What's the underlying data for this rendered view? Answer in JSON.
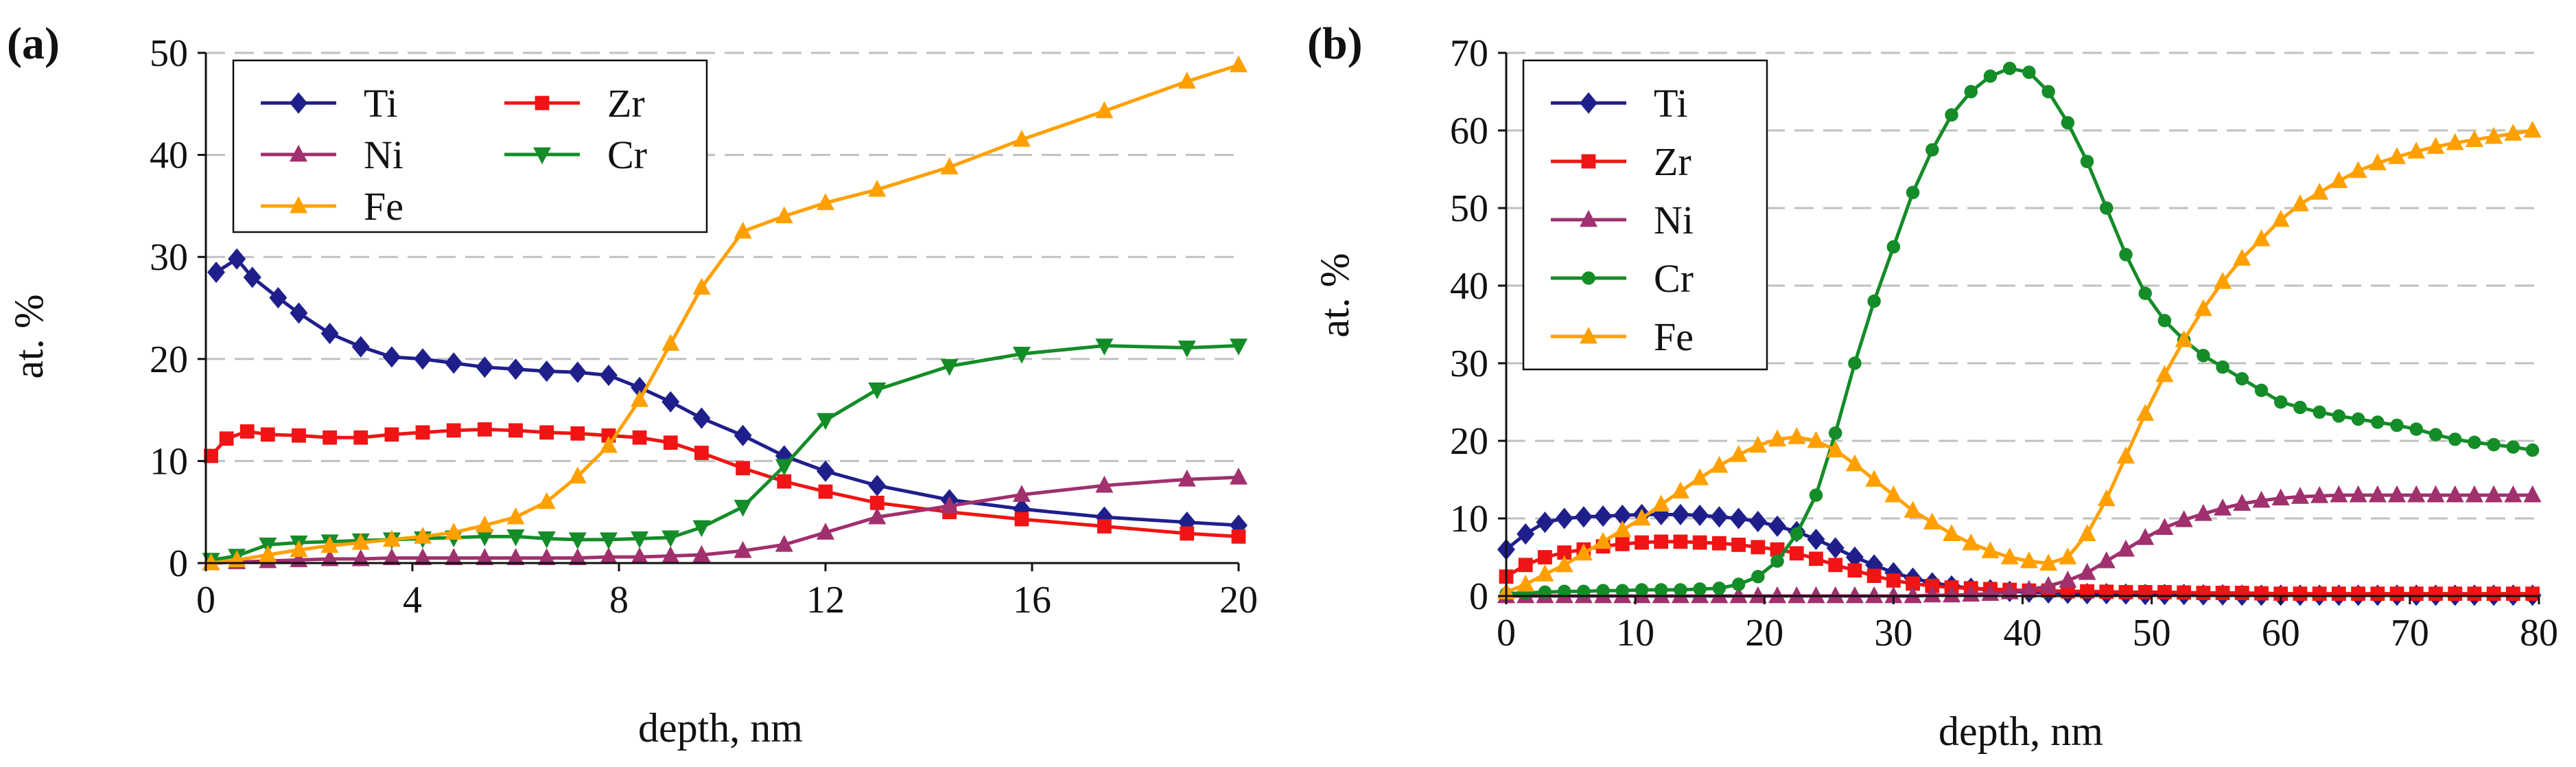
{
  "colors": {
    "Ti": "#1f1f8c",
    "Zr": "#f01414",
    "Ni": "#a0306e",
    "Cr": "#148c28",
    "Fe": "#ffa000",
    "grid": "#c0c0c0"
  },
  "chart_data": [
    {
      "type": "line",
      "panel_label": "(a)",
      "xlabel": "depth, nm",
      "ylabel": "at. %",
      "xlim": [
        0,
        20
      ],
      "ylim": [
        0,
        50
      ],
      "xticks": [
        0,
        4,
        8,
        12,
        16,
        20
      ],
      "yticks": [
        0,
        10,
        20,
        30,
        40,
        50
      ],
      "grid": "horizontal dashed",
      "legend": {
        "placement": "top-left",
        "columns": 2,
        "order": [
          "Ti",
          "Zr",
          "Ni",
          "Cr",
          "Fe"
        ]
      },
      "series": [
        {
          "name": "Ti",
          "marker": "diamond",
          "x": [
            0.2,
            0.6,
            0.9,
            1.4,
            1.8,
            2.4,
            3.0,
            3.6,
            4.2,
            4.8,
            5.4,
            6.0,
            6.6,
            7.2,
            7.8,
            8.4,
            9.0,
            9.6,
            10.4,
            11.2,
            12.0,
            13.0,
            14.4,
            15.8,
            17.4,
            19.0,
            20.0
          ],
          "values": [
            28.5,
            29.8,
            28.0,
            26.0,
            24.5,
            22.5,
            21.2,
            20.2,
            20.0,
            19.6,
            19.2,
            19.0,
            18.8,
            18.7,
            18.4,
            17.2,
            15.8,
            14.2,
            12.5,
            10.5,
            9.0,
            7.6,
            6.2,
            5.3,
            4.5,
            4.0,
            3.7
          ]
        },
        {
          "name": "Zr",
          "marker": "square",
          "x": [
            0.1,
            0.4,
            0.8,
            1.2,
            1.8,
            2.4,
            3.0,
            3.6,
            4.2,
            4.8,
            5.4,
            6.0,
            6.6,
            7.2,
            7.8,
            8.4,
            9.0,
            9.6,
            10.4,
            11.2,
            12.0,
            13.0,
            14.4,
            15.8,
            17.4,
            19.0,
            20.0
          ],
          "values": [
            10.5,
            12.2,
            12.9,
            12.6,
            12.5,
            12.3,
            12.3,
            12.6,
            12.8,
            13.0,
            13.1,
            13.0,
            12.8,
            12.7,
            12.5,
            12.3,
            11.8,
            10.8,
            9.3,
            8.0,
            7.0,
            5.9,
            5.0,
            4.3,
            3.6,
            2.9,
            2.6
          ]
        },
        {
          "name": "Ni",
          "marker": "triangle",
          "x": [
            0.1,
            0.6,
            1.2,
            1.8,
            2.4,
            3.0,
            3.6,
            4.2,
            4.8,
            5.4,
            6.0,
            6.6,
            7.2,
            7.8,
            8.4,
            9.0,
            9.6,
            10.4,
            11.2,
            12.0,
            13.0,
            14.4,
            15.8,
            17.4,
            19.0,
            20.0
          ],
          "values": [
            0.0,
            0.1,
            0.2,
            0.3,
            0.4,
            0.4,
            0.5,
            0.5,
            0.5,
            0.5,
            0.5,
            0.5,
            0.5,
            0.6,
            0.6,
            0.7,
            0.8,
            1.2,
            1.8,
            3.0,
            4.5,
            5.6,
            6.7,
            7.6,
            8.2,
            8.4
          ]
        },
        {
          "name": "Cr",
          "marker": "triangle-down",
          "x": [
            0.1,
            0.6,
            1.2,
            1.8,
            2.4,
            3.0,
            3.6,
            4.2,
            4.8,
            5.4,
            6.0,
            6.6,
            7.2,
            7.8,
            8.4,
            9.0,
            9.6,
            10.4,
            11.2,
            12.0,
            13.0,
            14.4,
            15.8,
            17.4,
            19.0,
            20.0
          ],
          "values": [
            0.3,
            0.7,
            1.8,
            2.0,
            2.1,
            2.2,
            2.3,
            2.4,
            2.5,
            2.6,
            2.6,
            2.4,
            2.3,
            2.3,
            2.4,
            2.5,
            3.5,
            5.5,
            9.5,
            14.0,
            17.0,
            19.3,
            20.5,
            21.3,
            21.1,
            21.3
          ]
        },
        {
          "name": "Fe",
          "marker": "triangle",
          "x": [
            0.1,
            0.6,
            1.2,
            1.8,
            2.4,
            3.0,
            3.6,
            4.2,
            4.8,
            5.4,
            6.0,
            6.6,
            7.2,
            7.8,
            8.4,
            9.0,
            9.6,
            10.4,
            11.2,
            12.0,
            13.0,
            14.4,
            15.8,
            17.4,
            19.0,
            20.0
          ],
          "values": [
            0.0,
            0.3,
            0.8,
            1.3,
            1.7,
            2.0,
            2.3,
            2.6,
            3.0,
            3.7,
            4.5,
            6.0,
            8.5,
            11.5,
            16.0,
            21.5,
            27.0,
            32.5,
            34.0,
            35.3,
            36.6,
            38.8,
            41.5,
            44.3,
            47.2,
            48.8
          ]
        }
      ]
    },
    {
      "type": "line",
      "panel_label": "(b)",
      "xlabel": "depth, nm",
      "ylabel": "at. %",
      "xlim": [
        0,
        80
      ],
      "ylim": [
        0,
        70
      ],
      "xticks": [
        0,
        10,
        20,
        30,
        40,
        50,
        60,
        70,
        80
      ],
      "yticks": [
        0,
        10,
        20,
        30,
        40,
        50,
        60,
        70
      ],
      "grid": "horizontal dashed",
      "legend": {
        "placement": "top-left",
        "columns": 1,
        "order": [
          "Ti",
          "Zr",
          "Ni",
          "Cr",
          "Fe"
        ]
      },
      "series": [
        {
          "name": "Ti",
          "marker": "diamond",
          "x": [
            0,
            1.5,
            3,
            4.5,
            6,
            7.5,
            9,
            10.5,
            12,
            13.5,
            15,
            16.5,
            18,
            19.5,
            21,
            22.5,
            24,
            25.5,
            27,
            28.5,
            30,
            31.5,
            33,
            34.5,
            36,
            37.5,
            39,
            40.5,
            42,
            43.5,
            45,
            46.5,
            48,
            49.5,
            51,
            52.5,
            54,
            55.5,
            57,
            58.5,
            60,
            61.5,
            63,
            64.5,
            66,
            67.5,
            69,
            70.5,
            72,
            73.5,
            75,
            76.5,
            78,
            79.5
          ],
          "values": [
            6.0,
            8.0,
            9.5,
            10.0,
            10.2,
            10.3,
            10.4,
            10.5,
            10.5,
            10.5,
            10.4,
            10.2,
            10.0,
            9.6,
            9.0,
            8.3,
            7.3,
            6.2,
            5.0,
            4.0,
            3.0,
            2.3,
            1.7,
            1.3,
            1.0,
            0.8,
            0.6,
            0.5,
            0.4,
            0.35,
            0.3,
            0.3,
            0.25,
            0.2,
            0.2,
            0.2,
            0.15,
            0.15,
            0.1,
            0.1,
            0.1,
            0.1,
            0.1,
            0.1,
            0.1,
            0.1,
            0.1,
            0.1,
            0.1,
            0.1,
            0.1,
            0.1,
            0.1,
            0.1
          ]
        },
        {
          "name": "Zr",
          "marker": "square",
          "x": [
            0,
            1.5,
            3,
            4.5,
            6,
            7.5,
            9,
            10.5,
            12,
            13.5,
            15,
            16.5,
            18,
            19.5,
            21,
            22.5,
            24,
            25.5,
            27,
            28.5,
            30,
            31.5,
            33,
            34.5,
            36,
            37.5,
            39,
            40.5,
            42,
            43.5,
            45,
            46.5,
            48,
            49.5,
            51,
            52.5,
            54,
            55.5,
            57,
            58.5,
            60,
            61.5,
            63,
            64.5,
            66,
            67.5,
            69,
            70.5,
            72,
            73.5,
            75,
            76.5,
            78,
            79.5
          ],
          "values": [
            2.5,
            4.0,
            5.0,
            5.6,
            6.0,
            6.4,
            6.7,
            6.9,
            7.0,
            7.0,
            6.9,
            6.8,
            6.6,
            6.3,
            6.0,
            5.5,
            4.8,
            4.0,
            3.3,
            2.6,
            2.0,
            1.6,
            1.3,
            1.1,
            1.0,
            0.9,
            0.8,
            0.7,
            0.7,
            0.6,
            0.6,
            0.55,
            0.5,
            0.5,
            0.5,
            0.45,
            0.4,
            0.4,
            0.4,
            0.35,
            0.3,
            0.3,
            0.3,
            0.3,
            0.3,
            0.3,
            0.3,
            0.3,
            0.3,
            0.3,
            0.3,
            0.3,
            0.3,
            0.3
          ]
        },
        {
          "name": "Ni",
          "marker": "triangle",
          "x": [
            0,
            1.5,
            3,
            4.5,
            6,
            7.5,
            9,
            10.5,
            12,
            13.5,
            15,
            16.5,
            18,
            19.5,
            21,
            22.5,
            24,
            25.5,
            27,
            28.5,
            30,
            31.5,
            33,
            34.5,
            36,
            37.5,
            39,
            40.5,
            42,
            43.5,
            45,
            46.5,
            48,
            49.5,
            51,
            52.5,
            54,
            55.5,
            57,
            58.5,
            60,
            61.5,
            63,
            64.5,
            66,
            67.5,
            69,
            70.5,
            72,
            73.5,
            75,
            76.5,
            78,
            79.5
          ],
          "values": [
            0.0,
            0.0,
            0.0,
            0.0,
            0.0,
            0.0,
            0.0,
            0.0,
            0.0,
            0.0,
            0.0,
            0.0,
            0.0,
            0.0,
            0.0,
            0.0,
            0.0,
            0.0,
            0.0,
            0.0,
            0.0,
            0.0,
            0.1,
            0.1,
            0.2,
            0.3,
            0.5,
            0.8,
            1.3,
            2.0,
            3.0,
            4.5,
            6.0,
            7.5,
            8.8,
            9.8,
            10.6,
            11.3,
            11.9,
            12.3,
            12.6,
            12.8,
            12.9,
            13.0,
            13.0,
            13.0,
            13.0,
            13.0,
            13.0,
            13.0,
            13.0,
            13.0,
            13.0,
            13.0
          ]
        },
        {
          "name": "Cr",
          "marker": "circle",
          "x": [
            0,
            1.5,
            3,
            4.5,
            6,
            7.5,
            9,
            10.5,
            12,
            13.5,
            15,
            16.5,
            18,
            19.5,
            21,
            22.5,
            24,
            25.5,
            27,
            28.5,
            30,
            31.5,
            33,
            34.5,
            36,
            37.5,
            39,
            40.5,
            42,
            43.5,
            45,
            46.5,
            48,
            49.5,
            51,
            52.5,
            54,
            55.5,
            57,
            58.5,
            60,
            61.5,
            63,
            64.5,
            66,
            67.5,
            69,
            70.5,
            72,
            73.5,
            75,
            76.5,
            78,
            79.5
          ],
          "values": [
            0.3,
            0.4,
            0.5,
            0.6,
            0.6,
            0.7,
            0.7,
            0.8,
            0.8,
            0.8,
            0.9,
            1.0,
            1.5,
            2.5,
            4.5,
            8.0,
            13.0,
            21.0,
            30.0,
            38.0,
            45.0,
            52.0,
            57.5,
            62.0,
            65.0,
            67.0,
            68.0,
            67.5,
            65.0,
            61.0,
            56.0,
            50.0,
            44.0,
            39.0,
            35.5,
            33.0,
            31.0,
            29.5,
            28.0,
            26.5,
            25.0,
            24.3,
            23.7,
            23.2,
            22.8,
            22.4,
            22.0,
            21.5,
            20.8,
            20.2,
            19.8,
            19.5,
            19.2,
            18.8
          ]
        },
        {
          "name": "Fe",
          "marker": "triangle",
          "x": [
            0,
            1.5,
            3,
            4.5,
            6,
            7.5,
            9,
            10.5,
            12,
            13.5,
            15,
            16.5,
            18,
            19.5,
            21,
            22.5,
            24,
            25.5,
            27,
            28.5,
            30,
            31.5,
            33,
            34.5,
            36,
            37.5,
            39,
            40.5,
            42,
            43.5,
            45,
            46.5,
            48,
            49.5,
            51,
            52.5,
            54,
            55.5,
            57,
            58.5,
            60,
            61.5,
            63,
            64.5,
            66,
            67.5,
            69,
            70.5,
            72,
            73.5,
            75,
            76.5,
            78,
            79.5
          ],
          "values": [
            0.5,
            1.5,
            2.8,
            4.0,
            5.5,
            7.0,
            8.5,
            10.0,
            11.8,
            13.5,
            15.2,
            16.8,
            18.2,
            19.4,
            20.2,
            20.5,
            20.0,
            18.8,
            17.0,
            15.0,
            13.0,
            11.0,
            9.5,
            8.0,
            6.8,
            5.8,
            5.0,
            4.5,
            4.2,
            5.0,
            8.0,
            12.5,
            18.0,
            23.5,
            28.5,
            33.0,
            37.0,
            40.5,
            43.5,
            46.0,
            48.5,
            50.5,
            52.0,
            53.5,
            54.8,
            55.8,
            56.6,
            57.3,
            57.9,
            58.4,
            58.8,
            59.2,
            59.6,
            60.0
          ]
        }
      ]
    }
  ]
}
